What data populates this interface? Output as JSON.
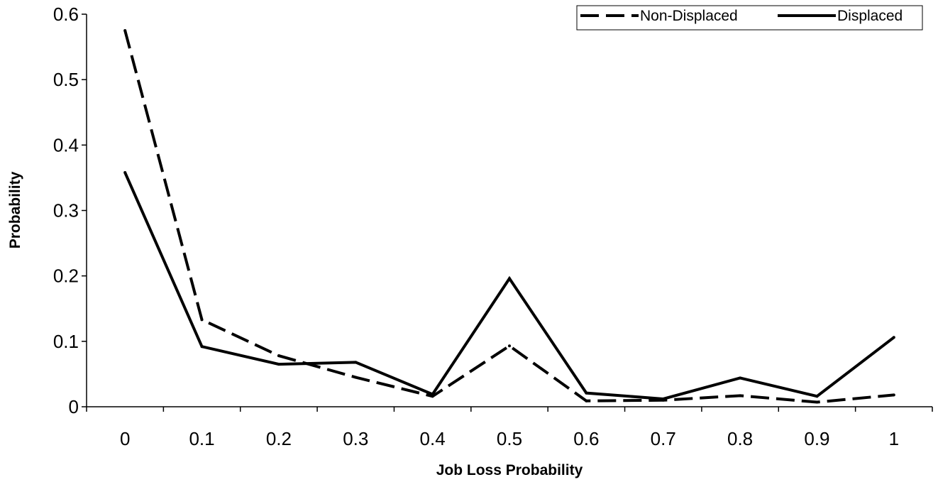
{
  "chart_data": {
    "type": "line",
    "title": "",
    "xlabel": "Job Loss Probability",
    "ylabel": "Probability",
    "categories": [
      "0",
      "0.1",
      "0.2",
      "0.3",
      "0.4",
      "0.5",
      "0.6",
      "0.7",
      "0.8",
      "0.9",
      "1"
    ],
    "yticks": [
      "0",
      "0.1",
      "0.2",
      "0.3",
      "0.4",
      "0.5",
      "0.6"
    ],
    "ylim": [
      0,
      0.6
    ],
    "grid": false,
    "legend_position": "top-right",
    "series": [
      {
        "name": "Non-Displaced",
        "line_style": "dashed",
        "color": "#000000",
        "values": [
          0.575,
          0.133,
          0.078,
          0.045,
          0.016,
          0.093,
          0.009,
          0.01,
          0.017,
          0.007,
          0.018
        ]
      },
      {
        "name": "Displaced",
        "line_style": "solid",
        "color": "#000000",
        "values": [
          0.358,
          0.092,
          0.065,
          0.068,
          0.019,
          0.196,
          0.021,
          0.012,
          0.044,
          0.016,
          0.106
        ]
      }
    ]
  }
}
